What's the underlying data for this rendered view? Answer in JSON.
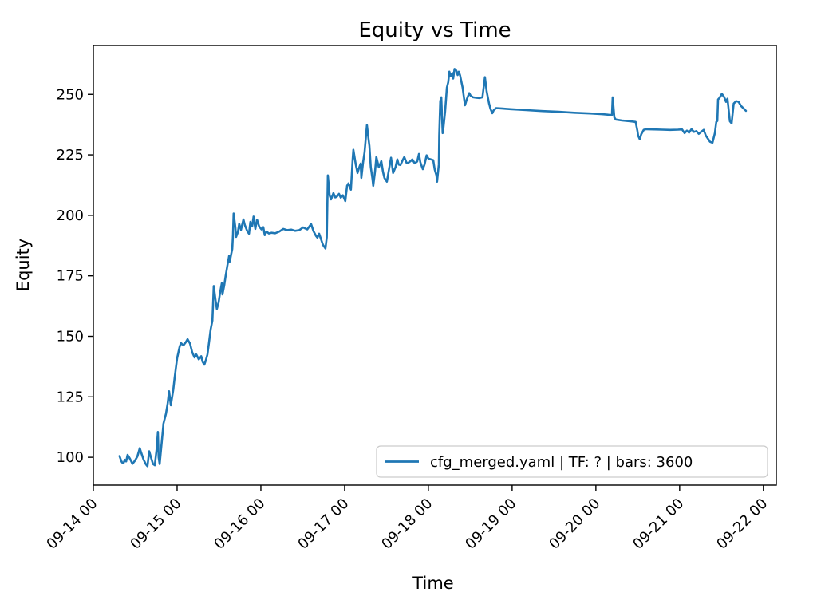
{
  "figure": {
    "background": "#ffffff",
    "text_color": "#000000",
    "spine_color": "#000000"
  },
  "chart_data": {
    "type": "line",
    "title": "Equity vs Time",
    "xlabel": "Time",
    "ylabel": "Equity",
    "grid": false,
    "legend_position": "lower right",
    "legend_border_color": "#cccccc",
    "x_tick_labels": [
      "09-14 00",
      "09-15 00",
      "09-16 00",
      "09-17 00",
      "09-18 00",
      "09-19 00",
      "09-20 00",
      "09-21 00",
      "09-22 00"
    ],
    "x_tick_hours": [
      0,
      24,
      48,
      72,
      96,
      120,
      144,
      168,
      192
    ],
    "x_tick_rotation_deg": 45,
    "y_tick_values": [
      100,
      125,
      150,
      175,
      200,
      225,
      250
    ],
    "x_range_hours": [
      0,
      195.7
    ],
    "y_range": [
      88.5,
      270.2
    ],
    "x_unit": "hours since 09-14 00:00",
    "series": [
      {
        "name": "cfg_merged.yaml | TF: ? | bars: 3600",
        "color": "#1f77b4",
        "points": [
          [
            7.5,
            100.5
          ],
          [
            7.8,
            99.3
          ],
          [
            8.1,
            98.2
          ],
          [
            8.4,
            97.6
          ],
          [
            8.7,
            97.8
          ],
          [
            9.0,
            99.0
          ],
          [
            9.4,
            98.3
          ],
          [
            9.8,
            101.0
          ],
          [
            10.2,
            100.1
          ],
          [
            10.5,
            99.4
          ],
          [
            11.2,
            97.3
          ],
          [
            11.9,
            98.6
          ],
          [
            12.6,
            100.3
          ],
          [
            13.3,
            103.8
          ],
          [
            13.7,
            102.0
          ],
          [
            14.4,
            99.0
          ],
          [
            15.1,
            97.0
          ],
          [
            15.5,
            96.3
          ],
          [
            16.0,
            102.5
          ],
          [
            16.5,
            100.0
          ],
          [
            17.1,
            97.2
          ],
          [
            17.6,
            96.7
          ],
          [
            18.1,
            103.0
          ],
          [
            18.5,
            110.5
          ],
          [
            18.7,
            100.0
          ],
          [
            19.0,
            97.2
          ],
          [
            19.7,
            108.0
          ],
          [
            20.1,
            114.0
          ],
          [
            20.8,
            118.0
          ],
          [
            21.3,
            122.4
          ],
          [
            21.7,
            127.3
          ],
          [
            22.2,
            121.5
          ],
          [
            22.9,
            128.0
          ],
          [
            23.3,
            133.0
          ],
          [
            24.0,
            141.0
          ],
          [
            24.7,
            145.5
          ],
          [
            25.1,
            147.2
          ],
          [
            25.8,
            146.3
          ],
          [
            26.5,
            147.6
          ],
          [
            27.0,
            148.8
          ],
          [
            27.7,
            147.0
          ],
          [
            28.3,
            143.5
          ],
          [
            29.0,
            141.3
          ],
          [
            29.5,
            142.5
          ],
          [
            30.2,
            140.5
          ],
          [
            30.9,
            141.8
          ],
          [
            31.3,
            139.5
          ],
          [
            31.8,
            138.3
          ],
          [
            32.2,
            139.9
          ],
          [
            32.7,
            142.5
          ],
          [
            33.1,
            147.0
          ],
          [
            33.6,
            152.8
          ],
          [
            34.1,
            156.5
          ],
          [
            34.3,
            163.0
          ],
          [
            34.5,
            170.8
          ],
          [
            35.0,
            165.0
          ],
          [
            35.4,
            161.3
          ],
          [
            35.9,
            164.0
          ],
          [
            36.3,
            168.0
          ],
          [
            36.8,
            172.0
          ],
          [
            37.0,
            167.3
          ],
          [
            37.5,
            171.0
          ],
          [
            37.9,
            175.0
          ],
          [
            38.4,
            179.3
          ],
          [
            38.9,
            183.3
          ],
          [
            39.1,
            180.9
          ],
          [
            39.5,
            184.0
          ],
          [
            39.8,
            186.1
          ],
          [
            40.0,
            192.0
          ],
          [
            40.2,
            200.8
          ],
          [
            40.7,
            194.9
          ],
          [
            40.9,
            191.1
          ],
          [
            41.4,
            193.0
          ],
          [
            41.8,
            196.5
          ],
          [
            42.3,
            194.0
          ],
          [
            43.0,
            198.3
          ],
          [
            43.4,
            196.0
          ],
          [
            44.1,
            193.5
          ],
          [
            44.6,
            192.4
          ],
          [
            45.0,
            197.3
          ],
          [
            45.5,
            195.4
          ],
          [
            45.9,
            199.5
          ],
          [
            46.4,
            194.4
          ],
          [
            46.9,
            198.2
          ],
          [
            47.5,
            195.4
          ],
          [
            48.2,
            194.2
          ],
          [
            48.7,
            195.1
          ],
          [
            49.1,
            191.8
          ],
          [
            49.6,
            193.3
          ],
          [
            50.3,
            192.5
          ],
          [
            51.0,
            192.8
          ],
          [
            52.1,
            192.6
          ],
          [
            53.3,
            193.3
          ],
          [
            54.4,
            194.4
          ],
          [
            55.5,
            193.9
          ],
          [
            56.7,
            194.1
          ],
          [
            57.8,
            193.6
          ],
          [
            59.0,
            193.9
          ],
          [
            60.1,
            195.0
          ],
          [
            61.3,
            194.2
          ],
          [
            62.4,
            196.4
          ],
          [
            63.1,
            193.4
          ],
          [
            63.8,
            191.5
          ],
          [
            64.2,
            190.8
          ],
          [
            64.7,
            192.4
          ],
          [
            65.8,
            187.8
          ],
          [
            66.5,
            186.3
          ],
          [
            66.9,
            191.0
          ],
          [
            67.2,
            216.5
          ],
          [
            67.7,
            208.3
          ],
          [
            68.1,
            206.6
          ],
          [
            68.8,
            209.2
          ],
          [
            69.3,
            207.4
          ],
          [
            69.7,
            207.6
          ],
          [
            70.4,
            208.9
          ],
          [
            70.9,
            207.3
          ],
          [
            71.5,
            208.3
          ],
          [
            72.2,
            205.9
          ],
          [
            72.7,
            212.2
          ],
          [
            73.1,
            213.2
          ],
          [
            73.8,
            210.6
          ],
          [
            74.3,
            223.1
          ],
          [
            74.5,
            227.1
          ],
          [
            75.2,
            221.0
          ],
          [
            75.7,
            217.5
          ],
          [
            76.1,
            219.5
          ],
          [
            76.6,
            221.4
          ],
          [
            76.8,
            215.5
          ],
          [
            77.3,
            222.0
          ],
          [
            77.7,
            226.0
          ],
          [
            78.4,
            237.3
          ],
          [
            78.9,
            231.0
          ],
          [
            79.1,
            228.7
          ],
          [
            79.5,
            220.0
          ],
          [
            80.0,
            214.9
          ],
          [
            80.2,
            212.2
          ],
          [
            80.7,
            218.0
          ],
          [
            81.1,
            224.1
          ],
          [
            81.8,
            219.8
          ],
          [
            82.5,
            222.4
          ],
          [
            83.0,
            218.0
          ],
          [
            83.4,
            215.5
          ],
          [
            84.1,
            213.9
          ],
          [
            84.6,
            218.0
          ],
          [
            85.3,
            223.8
          ],
          [
            85.9,
            217.5
          ],
          [
            86.6,
            220.0
          ],
          [
            87.1,
            223.1
          ],
          [
            87.5,
            221.0
          ],
          [
            88.0,
            220.8
          ],
          [
            88.7,
            223.0
          ],
          [
            89.1,
            224.1
          ],
          [
            89.8,
            221.5
          ],
          [
            90.3,
            221.8
          ],
          [
            91.0,
            222.5
          ],
          [
            91.4,
            223.1
          ],
          [
            92.1,
            221.5
          ],
          [
            92.8,
            222.3
          ],
          [
            93.3,
            225.4
          ],
          [
            93.7,
            222.0
          ],
          [
            94.4,
            219.1
          ],
          [
            94.9,
            221.0
          ],
          [
            95.5,
            224.8
          ],
          [
            96.0,
            223.5
          ],
          [
            96.7,
            223.1
          ],
          [
            97.4,
            222.8
          ],
          [
            97.8,
            219.0
          ],
          [
            98.3,
            216.5
          ],
          [
            98.5,
            213.9
          ],
          [
            99.0,
            221.0
          ],
          [
            99.1,
            233.0
          ],
          [
            99.4,
            247.2
          ],
          [
            99.7,
            248.8
          ],
          [
            100.1,
            234.0
          ],
          [
            100.3,
            236.0
          ],
          [
            100.8,
            243.0
          ],
          [
            101.3,
            252.8
          ],
          [
            101.7,
            255.0
          ],
          [
            102.0,
            259.4
          ],
          [
            102.4,
            257.5
          ],
          [
            102.9,
            258.8
          ],
          [
            103.1,
            256.5
          ],
          [
            103.5,
            260.5
          ],
          [
            104.0,
            259.8
          ],
          [
            104.4,
            258.0
          ],
          [
            104.7,
            259.4
          ],
          [
            105.1,
            257.8
          ],
          [
            105.8,
            252.8
          ],
          [
            106.5,
            245.5
          ],
          [
            107.0,
            247.9
          ],
          [
            107.7,
            250.5
          ],
          [
            108.1,
            249.5
          ],
          [
            108.8,
            248.8
          ],
          [
            109.7,
            248.6
          ],
          [
            110.6,
            248.5
          ],
          [
            111.5,
            248.8
          ],
          [
            112.2,
            257.1
          ],
          [
            112.7,
            251.2
          ],
          [
            113.4,
            246.2
          ],
          [
            113.8,
            244.0
          ],
          [
            114.3,
            242.2
          ],
          [
            114.7,
            243.4
          ],
          [
            115.4,
            244.3
          ],
          [
            117.3,
            244.1
          ],
          [
            119.5,
            243.9
          ],
          [
            124.1,
            243.5
          ],
          [
            128.7,
            243.1
          ],
          [
            133.3,
            242.8
          ],
          [
            137.8,
            242.4
          ],
          [
            142.4,
            242.1
          ],
          [
            145.8,
            241.8
          ],
          [
            148.1,
            241.5
          ],
          [
            148.6,
            241.4
          ],
          [
            148.8,
            248.8
          ],
          [
            149.3,
            240.5
          ],
          [
            149.7,
            239.6
          ],
          [
            151.5,
            239.2
          ],
          [
            153.8,
            238.9
          ],
          [
            155.4,
            238.6
          ],
          [
            155.9,
            235.0
          ],
          [
            156.1,
            233.0
          ],
          [
            156.6,
            231.4
          ],
          [
            157.0,
            233.5
          ],
          [
            157.7,
            235.3
          ],
          [
            158.4,
            235.6
          ],
          [
            160.7,
            235.5
          ],
          [
            163.0,
            235.4
          ],
          [
            165.3,
            235.3
          ],
          [
            167.5,
            235.4
          ],
          [
            168.7,
            235.5
          ],
          [
            169.4,
            234.0
          ],
          [
            170.1,
            235.0
          ],
          [
            170.7,
            234.2
          ],
          [
            171.4,
            235.6
          ],
          [
            172.1,
            234.5
          ],
          [
            172.8,
            234.8
          ],
          [
            173.5,
            233.7
          ],
          [
            174.2,
            234.6
          ],
          [
            174.9,
            235.3
          ],
          [
            175.5,
            233.0
          ],
          [
            176.2,
            231.5
          ],
          [
            176.7,
            230.4
          ],
          [
            177.4,
            230.0
          ],
          [
            178.1,
            234.0
          ],
          [
            178.5,
            238.6
          ],
          [
            178.8,
            239.0
          ],
          [
            179.0,
            247.9
          ],
          [
            179.4,
            248.5
          ],
          [
            180.1,
            250.2
          ],
          [
            180.8,
            248.8
          ],
          [
            181.3,
            246.9
          ],
          [
            181.7,
            248.2
          ],
          [
            182.4,
            238.9
          ],
          [
            182.9,
            238.0
          ],
          [
            183.5,
            246.2
          ],
          [
            184.2,
            247.2
          ],
          [
            184.9,
            246.9
          ],
          [
            185.6,
            245.2
          ],
          [
            186.3,
            244.2
          ],
          [
            187.0,
            243.2
          ]
        ]
      }
    ]
  }
}
